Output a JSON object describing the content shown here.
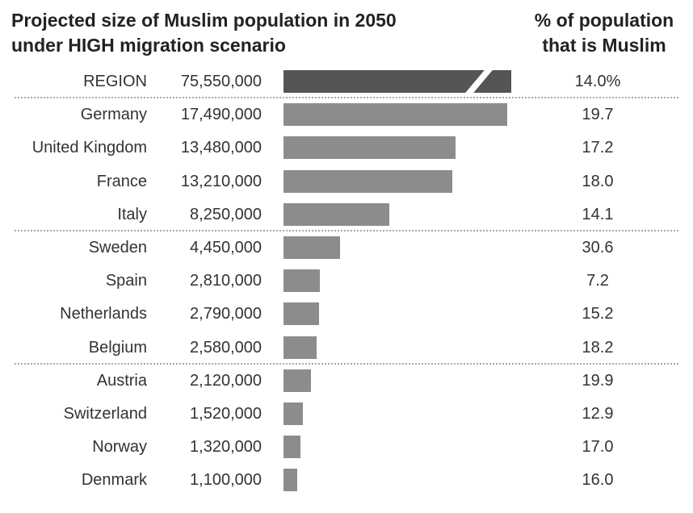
{
  "header": {
    "title_line1": "Projected size of Muslim population in 2050",
    "title_line2": "under HIGH migration scenario",
    "pct_line1": "% of population",
    "pct_line2": "that is Muslim"
  },
  "chart_data": {
    "type": "bar",
    "orientation": "horizontal",
    "title": "Projected size of Muslim population in 2050 under HIGH migration scenario",
    "secondary_column_title": "% of population that is Muslim",
    "axis_break_on_first_bar": true,
    "categories": [
      "REGION",
      "Germany",
      "United Kingdom",
      "France",
      "Italy",
      "Sweden",
      "Spain",
      "Netherlands",
      "Belgium",
      "Austria",
      "Switzerland",
      "Norway",
      "Denmark"
    ],
    "values": [
      75550000,
      17490000,
      13480000,
      13210000,
      8250000,
      4450000,
      2810000,
      2790000,
      2580000,
      2120000,
      1520000,
      1320000,
      1100000
    ],
    "value_labels": [
      "75,550,000",
      "17,490,000",
      "13,480,000",
      "13,210,000",
      "8,250,000",
      "4,450,000",
      "2,810,000",
      "2,790,000",
      "2,580,000",
      "2,120,000",
      "1,520,000",
      "1,320,000",
      "1,100,000"
    ],
    "percent_muslim_labels": [
      "14.0%",
      "19.7",
      "17.2",
      "18.0",
      "14.1",
      "30.6",
      "7.2",
      "15.2",
      "18.2",
      "19.9",
      "12.9",
      "17.0",
      "16.0"
    ],
    "group_separators_after": [
      "REGION",
      "Italy",
      "Belgium"
    ],
    "colors": {
      "region_bar": "#555555",
      "country_bar": "#8c8c8c",
      "separator": "#a8a8a8"
    }
  }
}
